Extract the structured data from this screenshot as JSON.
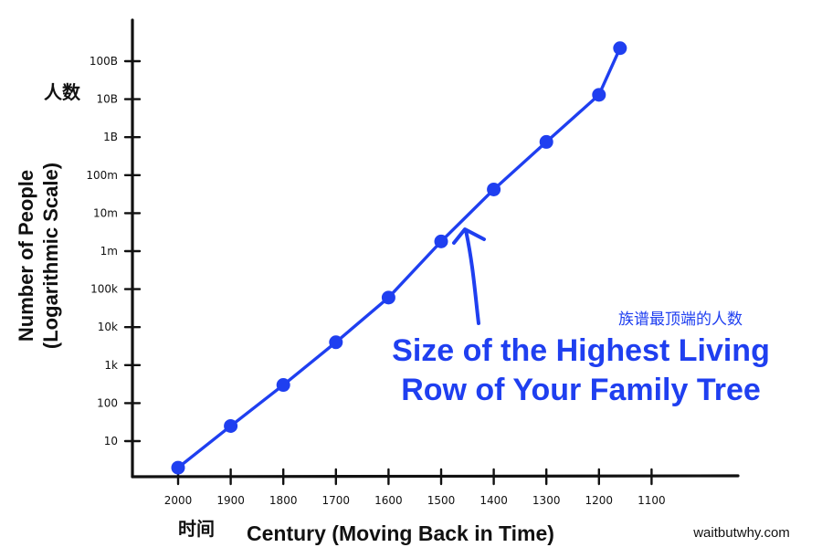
{
  "chart_data": {
    "type": "line",
    "xlabel": "Century (Moving Back in Time)",
    "xlabel_cn": "时间",
    "ylabel_line1": "Number of People",
    "ylabel_line2": "(Logarithmic Scale)",
    "ylabel_cn": "人数",
    "y_scale": "log",
    "y_ticks": [
      {
        "value": 10,
        "label": "10"
      },
      {
        "value": 100,
        "label": "100"
      },
      {
        "value": 1000,
        "label": "1k"
      },
      {
        "value": 10000,
        "label": "10k"
      },
      {
        "value": 100000,
        "label": "100k"
      },
      {
        "value": 1000000,
        "label": "1m"
      },
      {
        "value": 10000000,
        "label": "10m"
      },
      {
        "value": 100000000,
        "label": "100m"
      },
      {
        "value": 1000000000,
        "label": "1B"
      },
      {
        "value": 10000000000,
        "label": "10B"
      },
      {
        "value": 100000000000,
        "label": "100B"
      }
    ],
    "x_ticks": [
      "2000",
      "1900",
      "1800",
      "1700",
      "1600",
      "1500",
      "1400",
      "1300",
      "1200",
      "1100"
    ],
    "series": [
      {
        "color": "#1f3ff0",
        "x": [
          2000,
          1900,
          1800,
          1700,
          1600,
          1500,
          1400,
          1300,
          1200
        ],
        "y": [
          2,
          25,
          300,
          4000,
          60000,
          1800000,
          42000000,
          750000000,
          13000000000
        ]
      }
    ],
    "extra_points": [
      {
        "x": 1160,
        "y": 220000000000
      }
    ],
    "annotation": {
      "line1": "Size of the Highest Living",
      "line2": "Row of Your Family Tree",
      "cn": "族谱最顶端的人数",
      "color": "#1f3ff0"
    },
    "watermark": "waitbutwhy.com"
  }
}
